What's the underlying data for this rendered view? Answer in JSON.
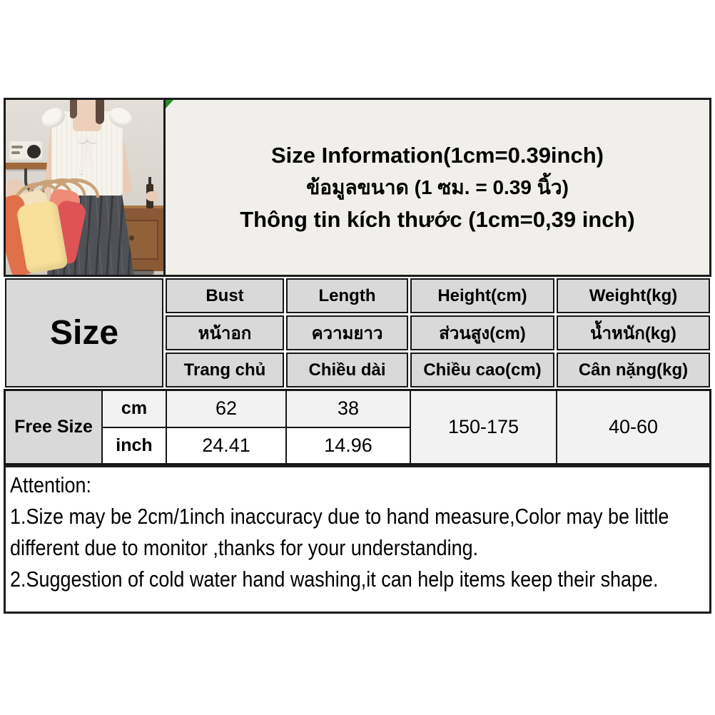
{
  "title": {
    "line_en": "Size Information(1cm=0.39inch)",
    "line_th": "ข้อมูลขนาด (1 ซม. = 0.39 นิ้ว)",
    "line_vi": "Thông tin kích thước (1cm=0,39 inch)"
  },
  "size_table": {
    "corner_label": "Size",
    "columns": [
      {
        "en": "Bust",
        "th": "หน้าอก",
        "vi": "Trang chủ"
      },
      {
        "en": "Length",
        "th": "ความยาว",
        "vi": "Chiều dài"
      },
      {
        "en": "Height(cm)",
        "th": "ส่วนสูง(cm)",
        "vi": "Chiều cao(cm)"
      },
      {
        "en": "Weight(kg)",
        "th": "น้ำหนัก(kg)",
        "vi": "Cân nặng(kg)"
      }
    ],
    "row_label": "Free Size",
    "unit_cm": "cm",
    "unit_inch": "inch",
    "values_cm": {
      "bust": "62",
      "length": "38"
    },
    "values_inch": {
      "bust": "24.41",
      "length": "14.96"
    },
    "height_range": "150-175",
    "weight_range": "40-60"
  },
  "attention": {
    "heading": "Attention:",
    "line1": "1.Size may be 2cm/1inch inaccuracy due to hand measure,Color may be little",
    "line2": "different due to monitor ,thanks for your understanding.",
    "line3": "2.Suggestion of cold water hand washing,it can help items keep their shape."
  },
  "colors": {
    "border": "#1c1c1c",
    "header_cell": "#d9d9d9",
    "value_cell": "#f2f2f2",
    "title_bg": "#f0efec",
    "corner_marker_green": "#1f8f1f"
  }
}
